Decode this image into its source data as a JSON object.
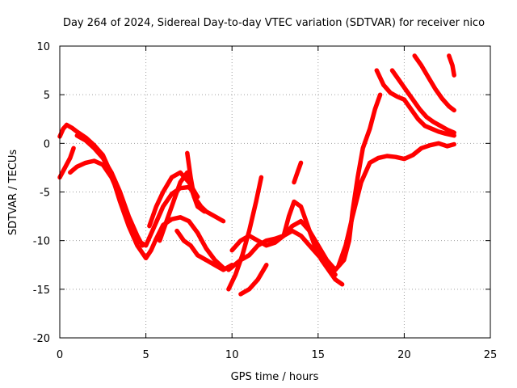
{
  "chart_data": {
    "type": "scatter",
    "title": "Day 264 of 2024, Sidereal Day-to-day VTEC variation (SDTVAR) for receiver nico",
    "xlabel": "GPS time / hours",
    "ylabel": "SDTVAR / TECUs",
    "xlim": [
      0,
      25
    ],
    "ylim": [
      -20,
      10
    ],
    "xticks": [
      0,
      5,
      10,
      15,
      20,
      25
    ],
    "yticks": [
      -20,
      -15,
      -10,
      -5,
      0,
      5,
      10
    ],
    "grid": true,
    "marker": "plus",
    "color": "#ff0000",
    "series": [
      {
        "name": "track-1",
        "x": [
          0.0,
          0.2,
          0.4,
          0.7,
          1.0,
          1.5,
          2.0,
          2.5,
          3.0,
          3.5,
          4.0,
          4.5,
          5.0,
          5.3,
          5.6,
          6.0,
          6.5,
          7.0,
          7.5,
          8.0,
          8.5,
          9.0,
          9.5
        ],
        "y": [
          0.7,
          1.5,
          1.9,
          1.6,
          1.2,
          0.6,
          -0.2,
          -1.2,
          -3.2,
          -6.0,
          -8.5,
          -10.5,
          -11.8,
          -11.0,
          -9.8,
          -8.4,
          -7.8,
          -7.6,
          -8.0,
          -9.2,
          -10.8,
          -12.0,
          -12.8
        ]
      },
      {
        "name": "track-2",
        "x": [
          0.0,
          0.3,
          0.6,
          0.8
        ],
        "y": [
          -3.5,
          -2.5,
          -1.5,
          -0.5
        ]
      },
      {
        "name": "track-3",
        "x": [
          0.6,
          1.0,
          1.5,
          2.0,
          2.5,
          3.0,
          3.5,
          4.0,
          4.5,
          5.0,
          5.5,
          6.0,
          6.5,
          7.0,
          7.5,
          8.0
        ],
        "y": [
          -3.0,
          -2.4,
          -2.0,
          -1.8,
          -2.2,
          -3.5,
          -5.5,
          -8.0,
          -10.0,
          -10.5,
          -8.5,
          -6.5,
          -5.2,
          -4.6,
          -4.5,
          -5.5
        ]
      },
      {
        "name": "track-4",
        "x": [
          1.0,
          1.5,
          2.0,
          2.5,
          3.0,
          3.5,
          4.0,
          4.5,
          4.8
        ],
        "y": [
          0.8,
          0.3,
          -0.5,
          -1.5,
          -3.0,
          -5.0,
          -7.5,
          -9.5,
          -10.5
        ]
      },
      {
        "name": "track-5",
        "x": [
          5.8,
          6.2,
          6.6,
          7.0,
          7.4,
          7.6,
          8.0,
          8.4
        ],
        "y": [
          -10.0,
          -8.0,
          -6.0,
          -4.0,
          -3.0,
          -4.5,
          -6.5,
          -7.0
        ]
      },
      {
        "name": "track-6",
        "x": [
          5.2,
          5.6,
          6.0,
          6.5,
          7.0,
          7.5,
          8.0
        ],
        "y": [
          -8.5,
          -6.5,
          -5.0,
          -3.5,
          -3.0,
          -4.0,
          -5.5
        ]
      },
      {
        "name": "track-7",
        "x": [
          7.4,
          7.6,
          7.8,
          8.0,
          8.2,
          8.5,
          9.0,
          9.5
        ],
        "y": [
          -1.0,
          -3.5,
          -5.5,
          -6.0,
          -6.5,
          -7.0,
          -7.5,
          -8.0
        ]
      },
      {
        "name": "track-8",
        "x": [
          6.8,
          7.2,
          7.6,
          8.0,
          8.5,
          9.0,
          9.5,
          10.0
        ],
        "y": [
          -9.0,
          -10.0,
          -10.5,
          -11.5,
          -12.0,
          -12.5,
          -13.0,
          -12.5
        ]
      },
      {
        "name": "track-9",
        "x": [
          9.8,
          10.2,
          10.6,
          11.0,
          11.4,
          11.7
        ],
        "y": [
          -15.0,
          -13.5,
          -11.5,
          -9.0,
          -6.0,
          -3.5
        ]
      },
      {
        "name": "track-10",
        "x": [
          10.5,
          11.0,
          11.5,
          12.0
        ],
        "y": [
          -15.5,
          -15.0,
          -14.0,
          -12.5
        ]
      },
      {
        "name": "track-11",
        "x": [
          9.8,
          10.5,
          11.0,
          11.5,
          12.0,
          12.5,
          13.0,
          13.5,
          14.0,
          14.5,
          15.0,
          15.5,
          16.0
        ],
        "y": [
          -13.0,
          -12.0,
          -11.5,
          -10.5,
          -10.0,
          -9.8,
          -9.5,
          -9.0,
          -9.5,
          -10.5,
          -11.5,
          -12.5,
          -13.5
        ]
      },
      {
        "name": "track-12",
        "x": [
          10.0,
          10.5,
          11.0,
          11.5,
          12.0,
          12.5,
          13.0,
          13.5,
          14.0,
          14.5,
          15.0,
          15.5,
          16.0
        ],
        "y": [
          -11.0,
          -10.0,
          -9.5,
          -10.0,
          -10.5,
          -10.2,
          -9.5,
          -8.5,
          -8.0,
          -9.0,
          -10.5,
          -12.0,
          -13.0
        ]
      },
      {
        "name": "track-13",
        "x": [
          13.0,
          13.3,
          13.6,
          14.0,
          14.4,
          14.8,
          15.2,
          15.6,
          16.0,
          16.4
        ],
        "y": [
          -9.5,
          -7.5,
          -6.0,
          -6.5,
          -8.5,
          -10.5,
          -12.0,
          -13.0,
          -14.0,
          -14.5
        ]
      },
      {
        "name": "track-14",
        "x": [
          13.6,
          13.8,
          14.0
        ],
        "y": [
          -4.0,
          -3.0,
          -2.0
        ]
      },
      {
        "name": "track-15",
        "x": [
          15.5,
          16.0,
          16.5,
          16.8,
          17.0,
          17.3,
          17.6,
          18.0,
          18.3,
          18.6
        ],
        "y": [
          -12.5,
          -13.0,
          -12.0,
          -10.0,
          -7.0,
          -3.5,
          -0.5,
          1.5,
          3.5,
          5.0
        ]
      },
      {
        "name": "track-16",
        "x": [
          16.2,
          16.6,
          17.0,
          17.5,
          18.0,
          18.5,
          19.0,
          19.5,
          20.0,
          20.5,
          21.0,
          21.5,
          22.0,
          22.5,
          22.9
        ],
        "y": [
          -12.5,
          -10.5,
          -7.5,
          -4.0,
          -2.0,
          -1.5,
          -1.3,
          -1.4,
          -1.6,
          -1.2,
          -0.5,
          -0.2,
          0.0,
          -0.3,
          -0.1
        ]
      },
      {
        "name": "track-17",
        "x": [
          18.4,
          18.8,
          19.2,
          19.6,
          20.0,
          20.4,
          20.8,
          21.2,
          21.6,
          22.0,
          22.4,
          22.9
        ],
        "y": [
          7.5,
          6.0,
          5.2,
          4.8,
          4.5,
          3.5,
          2.5,
          1.8,
          1.5,
          1.2,
          1.0,
          0.8
        ]
      },
      {
        "name": "track-18",
        "x": [
          19.3,
          19.7,
          20.1,
          20.5,
          20.9,
          21.3,
          21.7,
          22.1,
          22.5,
          22.9
        ],
        "y": [
          7.5,
          6.5,
          5.5,
          4.5,
          3.5,
          2.7,
          2.2,
          1.8,
          1.4,
          1.1
        ]
      },
      {
        "name": "track-19",
        "x": [
          20.6,
          21.0,
          21.4,
          21.8,
          22.2,
          22.6,
          22.9
        ],
        "y": [
          9.0,
          8.0,
          6.8,
          5.6,
          4.6,
          3.8,
          3.4
        ]
      },
      {
        "name": "track-20",
        "x": [
          22.6,
          22.8,
          22.9
        ],
        "y": [
          9.0,
          8.0,
          7.0
        ]
      }
    ]
  }
}
